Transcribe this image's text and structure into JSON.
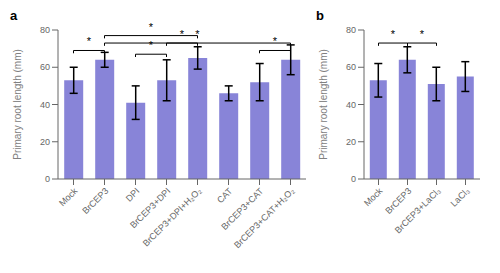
{
  "chart_data": [
    {
      "type": "bar",
      "title": "a",
      "categories": [
        "Mock",
        "BrCEP3",
        "DPI",
        "BrCEP3+DPI",
        "BrCEP3+DPI+H₂O₂",
        "CAT",
        "BrCEP3+CAT",
        "BrCEP3+CAT+H₂O₂"
      ],
      "values": [
        53,
        64,
        41,
        53,
        65,
        46,
        52,
        64
      ],
      "errors": [
        7,
        4,
        9,
        11,
        6,
        4,
        10,
        8
      ],
      "ylabel": "Primary root length (mm)",
      "ylim": [
        0,
        80
      ],
      "yticks": [
        0,
        20,
        40,
        60,
        80
      ],
      "color": "#8884d8",
      "annotations": [
        {
          "x1": "Mock",
          "x2": "BrCEP3",
          "y": 69,
          "label": "*"
        },
        {
          "x1": "DPI",
          "x2": "BrCEP3+DPI",
          "y": 67,
          "label": "*"
        },
        {
          "x1": "BrCEP3+DPI",
          "x2": "BrCEP3+DPI+H₂O₂",
          "y": 73,
          "label": "*"
        },
        {
          "x1": "BrCEP3",
          "x2": "BrCEP3+DPI+H₂O₂",
          "y": 77,
          "label": "*"
        },
        {
          "x1": "BrCEP3+CAT",
          "x2": "BrCEP3+CAT+H₂O₂",
          "y": 69,
          "label": "*"
        },
        {
          "x1": "BrCEP3",
          "x2": "BrCEP3+CAT+H₂O₂",
          "y": 73,
          "label": "*"
        }
      ]
    },
    {
      "type": "bar",
      "title": "b",
      "categories": [
        "Mock",
        "BrCEP3",
        "BrCEP3+LaCl₃",
        "LaCl₃"
      ],
      "values": [
        53,
        64,
        51,
        55
      ],
      "errors": [
        9,
        7,
        9,
        8
      ],
      "ylabel": "Primary root length (mm)",
      "ylim": [
        0,
        80
      ],
      "yticks": [
        0,
        20,
        40,
        60,
        80
      ],
      "color": "#8884d8",
      "annotations": [
        {
          "x1": "Mock",
          "x2": "BrCEP3",
          "y": 73,
          "label": "*"
        },
        {
          "x1": "BrCEP3",
          "x2": "BrCEP3+LaCl₃",
          "y": 73,
          "label": "*"
        }
      ]
    }
  ]
}
